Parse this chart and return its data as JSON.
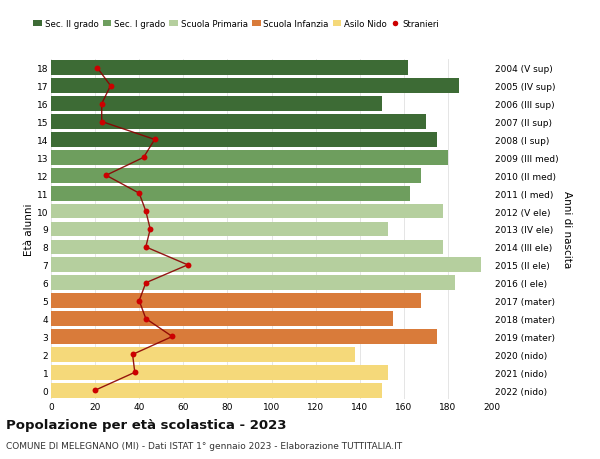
{
  "ages": [
    18,
    17,
    16,
    15,
    14,
    13,
    12,
    11,
    10,
    9,
    8,
    7,
    6,
    5,
    4,
    3,
    2,
    1,
    0
  ],
  "right_labels": [
    "2004 (V sup)",
    "2005 (IV sup)",
    "2006 (III sup)",
    "2007 (II sup)",
    "2008 (I sup)",
    "2009 (III med)",
    "2010 (II med)",
    "2011 (I med)",
    "2012 (V ele)",
    "2013 (IV ele)",
    "2014 (III ele)",
    "2015 (II ele)",
    "2016 (I ele)",
    "2017 (mater)",
    "2018 (mater)",
    "2019 (mater)",
    "2020 (nido)",
    "2021 (nido)",
    "2022 (nido)"
  ],
  "bar_values": [
    162,
    185,
    150,
    170,
    175,
    180,
    168,
    163,
    178,
    153,
    178,
    195,
    183,
    168,
    155,
    175,
    138,
    153,
    150
  ],
  "stranieri": [
    21,
    27,
    23,
    23,
    47,
    42,
    25,
    40,
    43,
    45,
    43,
    62,
    43,
    40,
    43,
    55,
    37,
    38,
    20
  ],
  "bar_colors": [
    "#3d6b35",
    "#3d6b35",
    "#3d6b35",
    "#3d6b35",
    "#3d6b35",
    "#6e9e5e",
    "#6e9e5e",
    "#6e9e5e",
    "#b5cf9e",
    "#b5cf9e",
    "#b5cf9e",
    "#b5cf9e",
    "#b5cf9e",
    "#d97b3a",
    "#d97b3a",
    "#d97b3a",
    "#f5d97a",
    "#f5d97a",
    "#f5d97a"
  ],
  "legend_labels": [
    "Sec. II grado",
    "Sec. I grado",
    "Scuola Primaria",
    "Scuola Infanzia",
    "Asilo Nido",
    "Stranieri"
  ],
  "legend_colors": [
    "#3d6b35",
    "#6e9e5e",
    "#b5cf9e",
    "#d97b3a",
    "#f5d97a",
    "#cc0000"
  ],
  "title": "Popolazione per età scolastica - 2023",
  "subtitle": "COMUNE DI MELEGNANO (MI) - Dati ISTAT 1° gennaio 2023 - Elaborazione TUTTITALIA.IT",
  "ylabel_left": "Età alunni",
  "ylabel_right": "Anni di nascita",
  "xlim": [
    0,
    200
  ],
  "xticks": [
    0,
    20,
    40,
    60,
    80,
    100,
    120,
    140,
    160,
    180,
    200
  ],
  "bg_color": "#ffffff",
  "grid_color": "#e0e0e0",
  "stranieri_line_color": "#8b0000",
  "stranieri_dot_color": "#cc0000"
}
